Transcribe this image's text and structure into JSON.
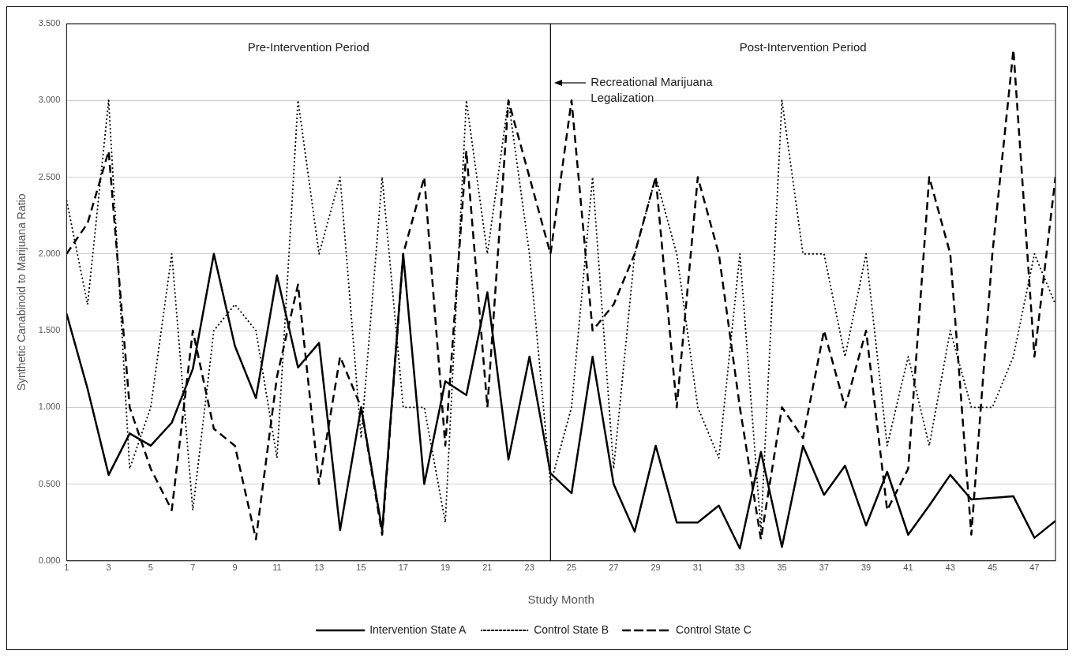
{
  "chart_data": {
    "type": "line",
    "xlabel": "Study Month",
    "ylabel": "Synthetic Canabinoid to Marijuana Ratio",
    "x": [
      1,
      2,
      3,
      4,
      5,
      6,
      7,
      8,
      9,
      10,
      11,
      12,
      13,
      14,
      15,
      16,
      17,
      18,
      19,
      20,
      21,
      22,
      23,
      24,
      25,
      26,
      27,
      28,
      29,
      30,
      31,
      32,
      33,
      34,
      35,
      36,
      37,
      38,
      39,
      40,
      41,
      42,
      43,
      44,
      45,
      46,
      47,
      48
    ],
    "series": [
      {
        "name": "Intervention State A",
        "color": "#000000",
        "line_style": "solid",
        "values": [
          1.61,
          1.12,
          0.56,
          0.83,
          0.75,
          0.9,
          1.25,
          2.0,
          1.4,
          1.06,
          1.86,
          1.26,
          1.42,
          0.2,
          1.0,
          0.2,
          2.0,
          0.5,
          1.17,
          1.08,
          1.75,
          0.66,
          1.33,
          0.57,
          0.44,
          1.33,
          0.5,
          0.19,
          0.75,
          0.25,
          0.25,
          0.36,
          0.08,
          0.71,
          0.09,
          0.75,
          0.43,
          0.62,
          0.23,
          0.58,
          0.17,
          0.36,
          0.56,
          0.4,
          0.41,
          0.42,
          0.15,
          0.26
        ]
      },
      {
        "name": "Control State B",
        "color": "#000000",
        "line_style": "dotted",
        "values": [
          2.35,
          1.67,
          3.0,
          0.6,
          1.0,
          2.0,
          0.33,
          1.5,
          1.67,
          1.5,
          0.67,
          3.0,
          2.0,
          2.5,
          0.8,
          2.5,
          1.0,
          1.0,
          0.25,
          3.0,
          2.0,
          3.0,
          2.0,
          0.5,
          1.0,
          2.5,
          0.6,
          2.0,
          2.5,
          2.0,
          1.0,
          0.67,
          2.0,
          0.2,
          3.0,
          2.0,
          2.0,
          1.33,
          2.0,
          0.75,
          1.33,
          0.75,
          1.5,
          1.0,
          1.0,
          1.33,
          2.0,
          1.67
        ]
      },
      {
        "name": "Control State C",
        "color": "#000000",
        "line_style": "dashed",
        "values": [
          2.0,
          2.2,
          2.67,
          1.0,
          0.6,
          0.33,
          1.5,
          0.86,
          0.75,
          0.14,
          1.2,
          1.8,
          0.5,
          1.33,
          1.0,
          0.17,
          2.0,
          2.5,
          0.75,
          2.67,
          1.0,
          3.0,
          2.5,
          2.0,
          3.0,
          1.5,
          1.67,
          2.0,
          2.5,
          1.0,
          2.5,
          2.0,
          1.0,
          0.14,
          1.0,
          0.8,
          1.5,
          1.0,
          1.5,
          0.33,
          0.6,
          2.5,
          2.0,
          0.17,
          2.0,
          3.33,
          1.33,
          2.5
        ]
      }
    ],
    "xlim": [
      1,
      48
    ],
    "xticks": [
      1,
      3,
      5,
      7,
      9,
      11,
      13,
      15,
      17,
      19,
      21,
      23,
      25,
      27,
      29,
      31,
      33,
      35,
      37,
      39,
      41,
      43,
      45,
      47
    ],
    "ylim": [
      0,
      3.5
    ],
    "yticks": [
      {
        "value": 0,
        "label": "0.000"
      },
      {
        "value": 0.5,
        "label": "0.500"
      },
      {
        "value": 1,
        "label": "1.000"
      },
      {
        "value": 1.5,
        "label": "1.500"
      },
      {
        "value": 2,
        "label": "2.000"
      },
      {
        "value": 2.5,
        "label": "2.500"
      },
      {
        "value": 3,
        "label": "3.000"
      },
      {
        "value": 3.5,
        "label": "3.500"
      }
    ],
    "ref_lines": [
      {
        "axis": "x",
        "value": 24,
        "color": "#000000"
      }
    ],
    "annotations": [
      "Pre-Intervention Period",
      "Post-Intervention Period",
      "Recreational Marijuana Legalization"
    ],
    "grid": "y",
    "legend": "bottom",
    "marker": "none"
  }
}
